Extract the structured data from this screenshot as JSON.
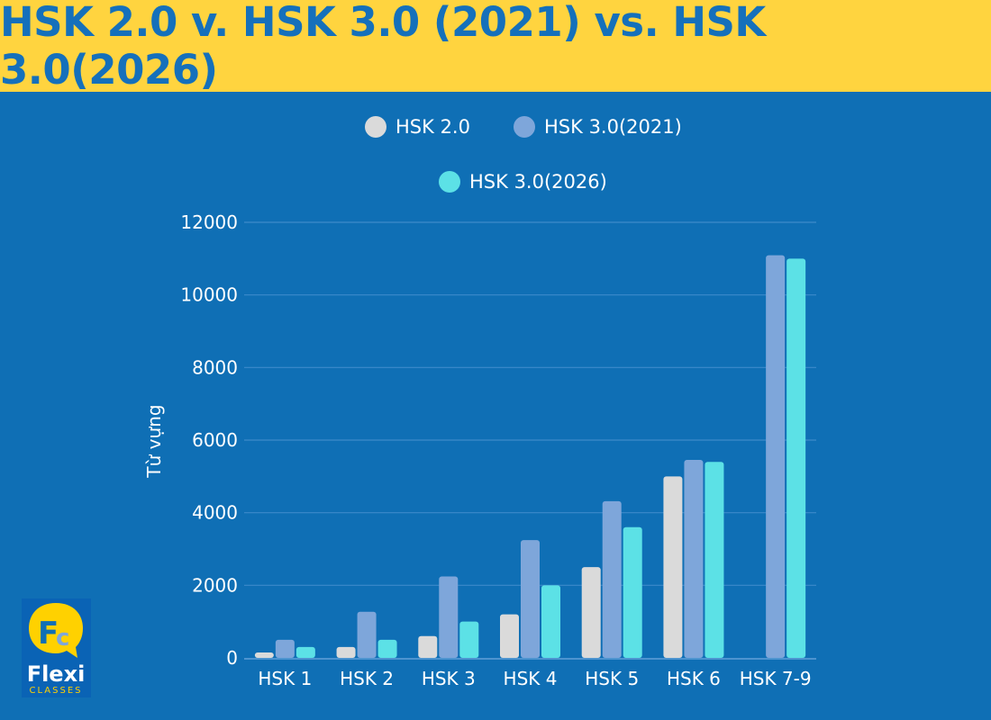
{
  "title": "HSK 2.0 v. HSK 3.0 (2021) vs. HSK 3.0(2026)",
  "colors": {
    "background": "#0F6FB5",
    "title_band": "#FFD43F",
    "title_text": "#1570BB"
  },
  "logo": {
    "text": "Flexi",
    "subtext": "CLASSES",
    "mark": "Fc"
  },
  "chart_data": {
    "type": "bar",
    "title": "HSK 2.0 v. HSK 3.0 (2021) vs. HSK 3.0(2026)",
    "xlabel": "",
    "ylabel": "Từ vựng",
    "ylim": [
      0,
      12000
    ],
    "yticks": [
      0,
      2000,
      4000,
      6000,
      8000,
      10000,
      12000
    ],
    "grid": true,
    "legend_placement": "top",
    "categories": [
      "HSK 1",
      "HSK 2",
      "HSK 3",
      "HSK 4",
      "HSK 5",
      "HSK 6",
      "HSK 7-9"
    ],
    "series": [
      {
        "name": "HSK 2.0",
        "color": "#DADADA",
        "values": [
          150,
          300,
          600,
          1200,
          2500,
          5000,
          null
        ]
      },
      {
        "name": "HSK 3.0(2021)",
        "color": "#7EA6DA",
        "values": [
          500,
          1272,
          2245,
          3245,
          4316,
          5456,
          11092
        ]
      },
      {
        "name": "HSK 3.0(2026)",
        "color": "#5CE1E6",
        "values": [
          300,
          500,
          1000,
          2000,
          3600,
          5400,
          11000
        ]
      }
    ]
  }
}
